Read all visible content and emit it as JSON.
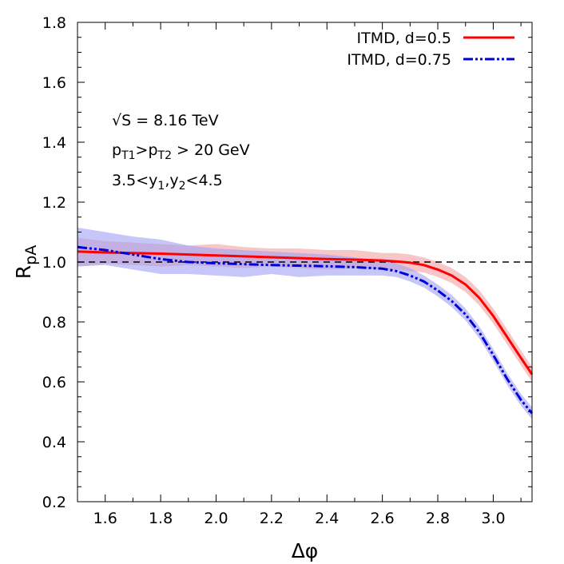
{
  "chart_data": {
    "type": "line",
    "title": "",
    "xlabel": "Δφ",
    "ylabel": {
      "main": "R",
      "sub": "pA"
    },
    "xlim": [
      1.5,
      3.14
    ],
    "ylim": [
      0.2,
      1.8
    ],
    "xticks": [
      1.6,
      1.8,
      2.0,
      2.2,
      2.4,
      2.6,
      2.8,
      3.0
    ],
    "xtick_labels": [
      "1.6",
      "1.8",
      "2.0",
      "2.2",
      "2.4",
      "2.6",
      "2.8",
      "3.0"
    ],
    "yticks": [
      0.2,
      0.4,
      0.6,
      0.8,
      1.0,
      1.2,
      1.4,
      1.6,
      1.8
    ],
    "ytick_labels": [
      "0.2",
      "0.4",
      "0.6",
      "0.8",
      "1.0",
      "1.2",
      "1.4",
      "1.6",
      "1.8"
    ],
    "grid": false,
    "legend_position": "top-right",
    "reference_line": {
      "y": 1.0,
      "style": "dashed",
      "color": "#000000"
    },
    "annotations": [
      [
        {
          "t": "√S = 8.16 TeV"
        }
      ],
      [
        {
          "t": "p"
        },
        {
          "t": "T1",
          "sub": true
        },
        {
          "t": ">p"
        },
        {
          "t": "T2",
          "sub": true
        },
        {
          "t": " > 20 GeV"
        }
      ],
      [
        {
          "t": "3.5<y"
        },
        {
          "t": "1",
          "sub": true
        },
        {
          "t": ",y"
        },
        {
          "t": "2",
          "sub": true
        },
        {
          "t": "<4.5"
        }
      ]
    ],
    "x": [
      1.5,
      1.6,
      1.7,
      1.8,
      1.9,
      2.0,
      2.1,
      2.2,
      2.3,
      2.4,
      2.5,
      2.6,
      2.65,
      2.7,
      2.75,
      2.8,
      2.85,
      2.9,
      2.95,
      3.0,
      3.05,
      3.1,
      3.14
    ],
    "series": [
      {
        "name": "ITMD, d=0.5",
        "color": "#ff0000",
        "line_style": "solid",
        "band_color": "#f4a0a0",
        "values": [
          1.035,
          1.032,
          1.03,
          1.028,
          1.025,
          1.022,
          1.019,
          1.016,
          1.013,
          1.01,
          1.008,
          1.005,
          1.002,
          0.998,
          0.99,
          0.975,
          0.955,
          0.925,
          0.88,
          0.82,
          0.75,
          0.68,
          0.625
        ],
        "band_low": [
          0.985,
          0.995,
          0.99,
          0.985,
          0.99,
          0.985,
          0.98,
          0.985,
          0.98,
          0.975,
          0.98,
          0.975,
          0.975,
          0.97,
          0.965,
          0.95,
          0.93,
          0.9,
          0.855,
          0.795,
          0.725,
          0.655,
          0.6
        ],
        "band_high": [
          1.08,
          1.07,
          1.065,
          1.06,
          1.055,
          1.06,
          1.05,
          1.045,
          1.045,
          1.04,
          1.04,
          1.03,
          1.03,
          1.025,
          1.015,
          1.0,
          0.98,
          0.95,
          0.905,
          0.845,
          0.775,
          0.705,
          0.65
        ]
      },
      {
        "name": "ITMD, d=0.75",
        "color": "#0000dd",
        "line_style": "dash-dot-dot",
        "band_color": "#a0a0f4",
        "values": [
          1.05,
          1.04,
          1.025,
          1.01,
          1.0,
          0.996,
          0.993,
          0.99,
          0.988,
          0.986,
          0.983,
          0.978,
          0.97,
          0.955,
          0.935,
          0.905,
          0.87,
          0.825,
          0.765,
          0.69,
          0.61,
          0.54,
          0.495
        ],
        "band_low": [
          0.985,
          0.99,
          0.975,
          0.96,
          0.96,
          0.955,
          0.95,
          0.96,
          0.95,
          0.955,
          0.955,
          0.955,
          0.95,
          0.935,
          0.915,
          0.885,
          0.85,
          0.805,
          0.745,
          0.67,
          0.59,
          0.52,
          0.475
        ],
        "band_high": [
          1.115,
          1.1,
          1.085,
          1.075,
          1.055,
          1.045,
          1.04,
          1.035,
          1.03,
          1.025,
          1.015,
          1.005,
          0.995,
          0.98,
          0.955,
          0.925,
          0.89,
          0.845,
          0.785,
          0.71,
          0.63,
          0.56,
          0.515
        ]
      }
    ]
  }
}
